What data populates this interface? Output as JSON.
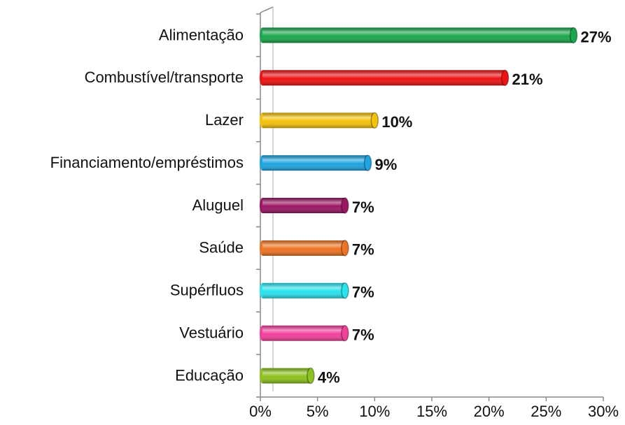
{
  "chart_data": {
    "type": "bar",
    "orientation": "horizontal",
    "categories": [
      "Alimentação",
      "Combustível/transporte",
      "Lazer",
      "Financiamento/empréstimos",
      "Aluguel",
      "Saúde",
      "Supérfluos",
      "Vestuário",
      "Educação"
    ],
    "values": [
      27.4,
      21.4,
      10.0,
      9.4,
      7.4,
      7.4,
      7.4,
      7.4,
      4.4
    ],
    "value_labels": [
      "27%",
      "21%",
      "10%",
      "9%",
      "7%",
      "7%",
      "7%",
      "7%",
      "4%"
    ],
    "colors": [
      "#1aa64a",
      "#ee1111",
      "#f5c20b",
      "#1ea4e0",
      "#9b1563",
      "#ee7322",
      "#27e4ee",
      "#f23f9a",
      "#8cc21d"
    ],
    "xlim": [
      0,
      30
    ],
    "xticks": [
      {
        "value": 0,
        "label": "0%"
      },
      {
        "value": 5,
        "label": "5%"
      },
      {
        "value": 10,
        "label": "10%"
      },
      {
        "value": 15,
        "label": "15%"
      },
      {
        "value": 20,
        "label": "20%"
      },
      {
        "value": 25,
        "label": "25%"
      },
      {
        "value": 30,
        "label": "30%"
      }
    ]
  }
}
